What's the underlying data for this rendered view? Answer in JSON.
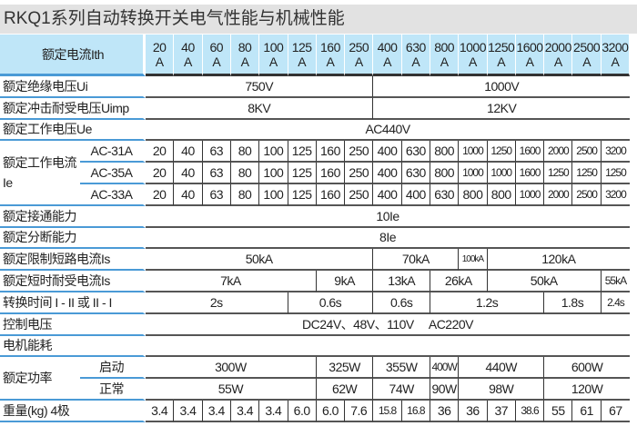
{
  "title": "RKQ1系列自动转换开关电气性能与机械性能",
  "header": {
    "label": "额定电流Ith",
    "unit": "A",
    "ratings": [
      "20",
      "40",
      "60",
      "80",
      "100",
      "125",
      "160",
      "250",
      "400",
      "630",
      "800",
      "1000",
      "1250",
      "1600",
      "2000",
      "2500",
      "3200"
    ]
  },
  "rows": [
    {
      "label": "额定绝缘电压Ui",
      "cells": [
        {
          "text": "750V",
          "span": 8
        },
        {
          "text": "1000V",
          "span": 9
        }
      ]
    },
    {
      "label": "额定冲击耐受电压Uimp",
      "cells": [
        {
          "text": "8KV",
          "span": 8
        },
        {
          "text": "12KV",
          "span": 9
        }
      ]
    },
    {
      "label": "额定工作电压Ue",
      "cells": [
        {
          "text": "AC440V",
          "span": 17
        }
      ]
    },
    {
      "group": "额定工作电流 Ie",
      "sub": "AC-31A",
      "cells": [
        "20",
        "40",
        "63",
        "80",
        "100",
        "125",
        "160",
        "250",
        "400",
        "630",
        "800",
        "1000",
        "1250",
        "1600",
        "2000",
        "2500",
        "3200"
      ]
    },
    {
      "sub": "AC-35A",
      "cells": [
        "20",
        "40",
        "63",
        "80",
        "100",
        "125",
        "160",
        "250",
        "400",
        "630",
        "800",
        "1000",
        "1000",
        "1600",
        "1250",
        "1250",
        "1250"
      ]
    },
    {
      "sub": "AC-33A",
      "cells": [
        "20",
        "40",
        "63",
        "80",
        "100",
        "125",
        "160",
        "250",
        "400",
        "400",
        "630",
        "800",
        "800",
        "1000",
        "2000",
        "2500",
        "3200"
      ]
    },
    {
      "label": "额定接通能力",
      "cells": [
        {
          "text": "10Ie",
          "span": 17
        }
      ]
    },
    {
      "label": "额定分断能力",
      "cells": [
        {
          "text": "8Ie",
          "span": 17
        }
      ]
    },
    {
      "label": "额定限制短路电流Is",
      "cells": [
        {
          "text": "50kA",
          "span": 8
        },
        {
          "text": "70kA",
          "span": 3
        },
        {
          "text": "100kA",
          "span": 1
        },
        {
          "text": "120kA",
          "span": 5
        }
      ]
    },
    {
      "label": "额定短时耐受电流Is",
      "cells": [
        {
          "text": "7kA",
          "span": 6
        },
        {
          "text": "9kA",
          "span": 2
        },
        {
          "text": "13kA",
          "span": 2
        },
        {
          "text": "26kA",
          "span": 2
        },
        {
          "text": "50kA",
          "span": 4
        },
        {
          "text": "55kA",
          "span": 1
        }
      ]
    },
    {
      "label": "转换时间 I - II 或 II - I",
      "cells": [
        {
          "text": "2s",
          "span": 5
        },
        {
          "text": "0.6s",
          "span": 3
        },
        {
          "text": "0.6s",
          "span": 2
        },
        {
          "text": "1.2s",
          "span": 4
        },
        {
          "text": "1.8s",
          "span": 2
        },
        {
          "text": "2.4s",
          "span": 1
        }
      ]
    },
    {
      "label": "控制电压",
      "cells": [
        {
          "text": "DC24V、48V、110V　 AC220V",
          "span": 17
        }
      ]
    },
    {
      "label": "电机能耗",
      "cells": [
        {
          "text": "",
          "span": 17
        }
      ]
    },
    {
      "group": "额定功率",
      "sub": "启动",
      "cells": [
        {
          "text": "300W",
          "span": 6
        },
        {
          "text": "325W",
          "span": 2
        },
        {
          "text": "355W",
          "span": 2
        },
        {
          "text": "400W",
          "span": 1
        },
        {
          "text": "440W",
          "span": 3
        },
        {
          "text": "600W",
          "span": 3
        }
      ]
    },
    {
      "sub": "正常",
      "cells": [
        {
          "text": "55W",
          "span": 6
        },
        {
          "text": "62W",
          "span": 2
        },
        {
          "text": "74W",
          "span": 2
        },
        {
          "text": "90W",
          "span": 1
        },
        {
          "text": "98W",
          "span": 3
        },
        {
          "text": "120W",
          "span": 3
        }
      ]
    },
    {
      "label": "重量(kg) 4极",
      "cells": [
        "3.4",
        "3.4",
        "3.4",
        "3.4",
        "3.4",
        "6.0",
        "6.0",
        "7.6",
        "15.8",
        "16.8",
        "36",
        "36",
        "37",
        "38.6",
        "55",
        "61",
        "67"
      ]
    }
  ]
}
